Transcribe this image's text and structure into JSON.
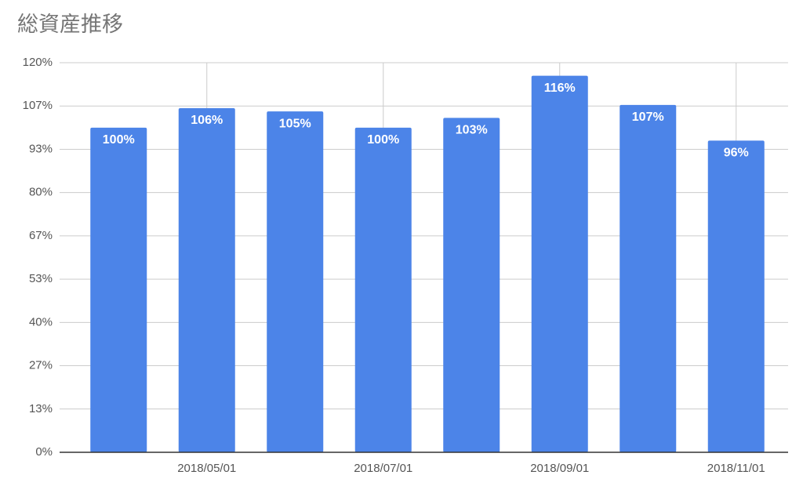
{
  "chart_data": {
    "type": "bar",
    "title": "総資産推移",
    "categories": [
      null,
      "2018/05/01",
      null,
      "2018/07/01",
      null,
      "2018/09/01",
      null,
      "2018/11/01"
    ],
    "values": [
      100,
      106,
      105,
      100,
      103,
      116,
      107,
      96
    ],
    "value_labels": [
      "100%",
      "106%",
      "105%",
      "100%",
      "103%",
      "116%",
      "107%",
      "96%"
    ],
    "color": "#4c84e8",
    "ylim": [
      0,
      120
    ],
    "yticks": [
      {
        "value": 0,
        "label": "0%"
      },
      {
        "value": 13.33,
        "label": "13%"
      },
      {
        "value": 26.67,
        "label": "27%"
      },
      {
        "value": 40,
        "label": "40%"
      },
      {
        "value": 53.33,
        "label": "53%"
      },
      {
        "value": 66.67,
        "label": "67%"
      },
      {
        "value": 80,
        "label": "80%"
      },
      {
        "value": 93.33,
        "label": "93%"
      },
      {
        "value": 106.67,
        "label": "107%"
      },
      {
        "value": 120,
        "label": "120%"
      }
    ],
    "grid": true
  }
}
